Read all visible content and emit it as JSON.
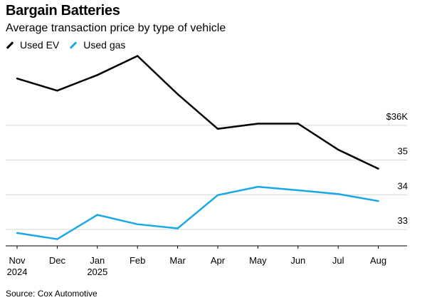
{
  "chart_data": {
    "type": "line",
    "title": "Bargain Batteries",
    "subtitle": "Average transaction price by type of vehicle",
    "source": "Source: Cox Automotive",
    "xlabel": "",
    "ylabel": "",
    "categories": [
      "Nov",
      "Dec",
      "Jan",
      "Feb",
      "Mar",
      "Apr",
      "May",
      "Jun",
      "Jul",
      "Aug"
    ],
    "category_years": [
      "2024",
      "",
      "2025",
      "",
      "",
      "",
      "",
      "",
      "",
      ""
    ],
    "series": [
      {
        "name": "Used EV",
        "color": "#000000",
        "values": [
          37.35,
          37.0,
          37.45,
          38.0,
          36.9,
          35.9,
          36.05,
          36.05,
          35.3,
          34.75
        ]
      },
      {
        "name": "Used gas",
        "color": "#1ba8e4",
        "values": [
          32.9,
          32.72,
          33.42,
          33.15,
          33.03,
          33.99,
          34.23,
          34.13,
          34.02,
          33.82
        ]
      }
    ],
    "ylim": [
      32.7,
      38.0
    ],
    "yticks": [
      {
        "value": 33,
        "label": "33"
      },
      {
        "value": 34,
        "label": "34"
      },
      {
        "value": 35,
        "label": "35"
      },
      {
        "value": 36,
        "label": "$36K"
      }
    ],
    "grid": true,
    "legend_position": "top-left"
  }
}
